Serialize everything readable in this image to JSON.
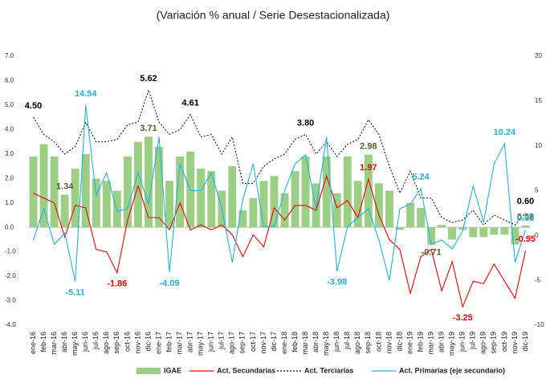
{
  "chart_data": {
    "type": "combo",
    "title": "(Variación % anual / Serie Desestacionalizada)",
    "categories": [
      "ene-16",
      "feb-16",
      "mar-16",
      "abr-16",
      "may-16",
      "jun-16",
      "jul-16",
      "ago-16",
      "sep-16",
      "oct-16",
      "nov-16",
      "dic-16",
      "ene-17",
      "feb-17",
      "mar-17",
      "abr-17",
      "may-17",
      "jun-17",
      "jul-17",
      "ago-17",
      "sep-17",
      "oct-17",
      "nov-17",
      "dic-17",
      "ene-18",
      "feb-18",
      "mar-18",
      "abr-18",
      "may-18",
      "jun-18",
      "jul-18",
      "ago-18",
      "sep-18",
      "oct-18",
      "nov-18",
      "dic-18",
      "ene-19",
      "feb-19",
      "mar-19",
      "abr-19",
      "may-19",
      "jun-19",
      "jul-19",
      "ago-19",
      "sep-19",
      "oct-19",
      "nov-19",
      "dic-19"
    ],
    "ylim": [
      -4,
      7
    ],
    "yticks": [
      {
        "value": -4,
        "label": "-4.0"
      },
      {
        "value": -3,
        "label": "-3.0"
      },
      {
        "value": -2,
        "label": "-2.0"
      },
      {
        "value": -1,
        "label": "-1.0"
      },
      {
        "value": 0,
        "label": "0.0"
      },
      {
        "value": 1,
        "label": "1.0"
      },
      {
        "value": 2,
        "label": "2.0"
      },
      {
        "value": 3,
        "label": "3.0"
      },
      {
        "value": 4,
        "label": "4.0"
      },
      {
        "value": 5,
        "label": "5.0"
      },
      {
        "value": 6,
        "label": "6.0"
      },
      {
        "value": 7,
        "label": "7.0"
      }
    ],
    "y2lim": [
      -10,
      20
    ],
    "y2ticks": [
      -10,
      -5,
      0,
      5,
      10,
      15,
      20
    ],
    "series": [
      {
        "name": "IGAE",
        "type": "bar",
        "color": "#9bcf86",
        "values": [
          2.9,
          3.4,
          2.9,
          1.34,
          2.4,
          3.0,
          2.0,
          1.9,
          1.5,
          2.9,
          3.5,
          3.71,
          3.3,
          1.9,
          2.9,
          3.1,
          2.4,
          2.3,
          1.5,
          2.5,
          0.7,
          1.2,
          1.9,
          2.1,
          1.4,
          2.3,
          2.9,
          1.8,
          2.9,
          1.4,
          2.9,
          1.9,
          2.98,
          1.8,
          1.5,
          -0.1,
          1.0,
          0.8,
          -0.71,
          0.1,
          -0.5,
          -0.1,
          -0.4,
          -0.4,
          -0.3,
          -0.3,
          -0.7,
          0.08
        ],
        "value_labels": [
          null,
          null,
          null,
          "1.34",
          null,
          null,
          null,
          null,
          null,
          null,
          null,
          "3.71",
          null,
          null,
          null,
          null,
          null,
          null,
          null,
          null,
          null,
          null,
          null,
          null,
          null,
          null,
          null,
          null,
          null,
          null,
          null,
          null,
          "2.98",
          null,
          null,
          null,
          null,
          null,
          "-0.71",
          null,
          null,
          null,
          null,
          null,
          null,
          null,
          null,
          "0.08"
        ]
      },
      {
        "name": "Act. Secundarias",
        "type": "line",
        "color": "#ff0000",
        "values": [
          1.4,
          1.2,
          1.0,
          -0.4,
          0.9,
          0.8,
          -0.9,
          -1.0,
          -1.86,
          0.3,
          1.7,
          0.4,
          0.4,
          -0.1,
          1.0,
          -0.1,
          0.1,
          -0.1,
          0.1,
          -0.3,
          -1.2,
          -0.3,
          -0.8,
          0.8,
          0.3,
          0.9,
          0.9,
          0.7,
          2.1,
          0.8,
          1.1,
          0.4,
          1.97,
          0.5,
          -0.5,
          -0.9,
          -2.7,
          -1.2,
          -0.9,
          -2.6,
          -1.4,
          -3.25,
          -2.2,
          -2.3,
          -1.5,
          -2.2,
          -2.9,
          -0.95
        ],
        "value_labels": [
          null,
          null,
          null,
          null,
          null,
          null,
          null,
          null,
          "-1.86",
          null,
          null,
          null,
          null,
          null,
          null,
          null,
          null,
          null,
          null,
          null,
          null,
          null,
          null,
          null,
          null,
          null,
          null,
          null,
          null,
          null,
          null,
          null,
          "1.97",
          null,
          null,
          null,
          null,
          null,
          null,
          null,
          null,
          "-3.25",
          null,
          null,
          null,
          null,
          null,
          "-0.95"
        ]
      },
      {
        "name": "Act. Terciarias",
        "type": "line",
        "dash": true,
        "color": "#000000",
        "values": [
          4.5,
          3.8,
          3.5,
          3.0,
          3.3,
          4.3,
          3.5,
          3.5,
          3.6,
          4.2,
          4.3,
          5.62,
          4.3,
          3.8,
          4.0,
          4.61,
          3.7,
          3.8,
          3.0,
          3.7,
          1.8,
          1.8,
          2.5,
          2.8,
          3.0,
          3.6,
          3.8,
          3.0,
          3.5,
          2.9,
          3.4,
          3.6,
          4.4,
          3.8,
          2.5,
          1.4,
          2.3,
          1.2,
          1.2,
          0.4,
          0.2,
          0.3,
          0.7,
          0.1,
          0.5,
          0.3,
          0.1,
          0.6
        ],
        "value_labels": [
          "4.50",
          null,
          null,
          null,
          null,
          null,
          null,
          null,
          null,
          null,
          null,
          "5.62",
          null,
          null,
          null,
          "4.61",
          null,
          null,
          null,
          null,
          null,
          null,
          null,
          null,
          null,
          null,
          "3.80",
          null,
          null,
          null,
          null,
          null,
          null,
          null,
          null,
          null,
          null,
          null,
          null,
          null,
          null,
          null,
          null,
          null,
          null,
          null,
          null,
          "0.60"
        ]
      },
      {
        "name": "Act. Primarias (eje secundario)",
        "type": "line",
        "axis": "y2",
        "color": "#1fb3e6",
        "values": [
          -0.5,
          3,
          -1,
          0.3,
          -5.11,
          14.54,
          4.5,
          7,
          2.7,
          3,
          7,
          3.5,
          11,
          -4.09,
          8,
          5,
          5,
          7,
          3,
          -3,
          4,
          8,
          1,
          1,
          5,
          8,
          9,
          3,
          11,
          -3.98,
          1,
          2,
          3,
          -0.5,
          -5,
          3,
          3.5,
          5.24,
          -1,
          -0.5,
          -1.5,
          0.5,
          5.5,
          1.5,
          8,
          10.24,
          -3,
          0.63
        ],
        "value_labels": [
          null,
          null,
          null,
          null,
          "-5.11",
          "14.54",
          null,
          null,
          null,
          null,
          null,
          null,
          null,
          "-4.09",
          null,
          null,
          null,
          null,
          null,
          null,
          null,
          null,
          null,
          null,
          null,
          null,
          null,
          null,
          null,
          "-3.98",
          null,
          null,
          null,
          null,
          null,
          null,
          null,
          "5.24",
          null,
          null,
          null,
          null,
          null,
          null,
          null,
          "10.24",
          null,
          "0.63"
        ]
      }
    ]
  }
}
